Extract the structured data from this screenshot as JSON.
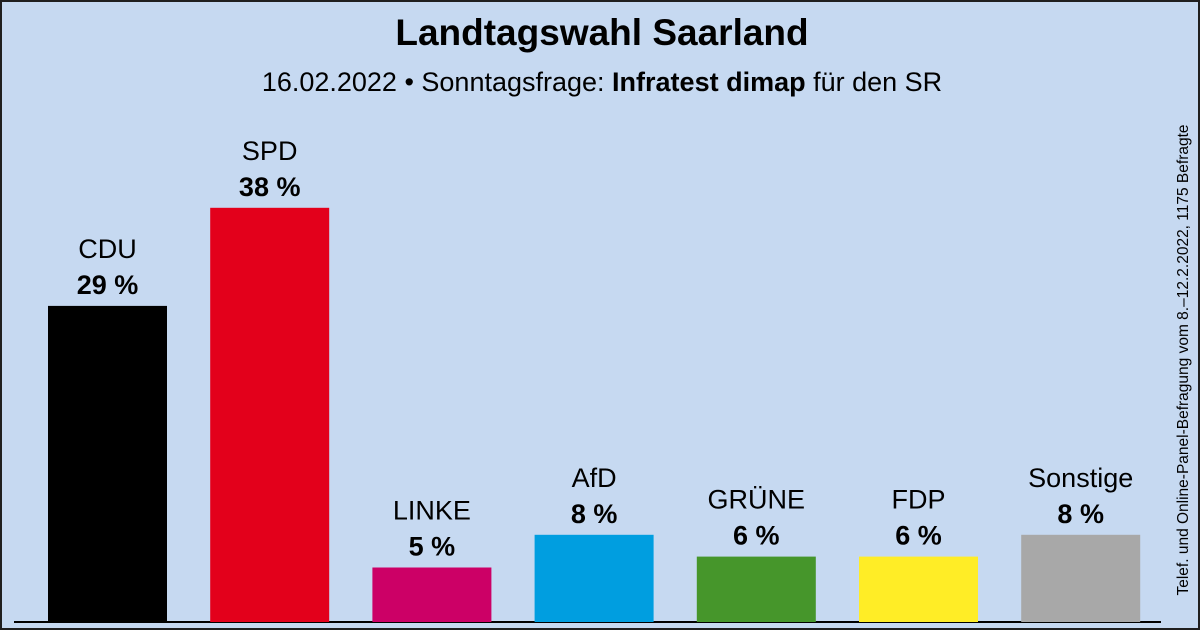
{
  "header": {
    "title": "Landtagswahl Saarland",
    "subtitle_prefix": "16.02.2022 • Sonntagsfrage: ",
    "subtitle_institute": "Infratest dimap",
    "subtitle_suffix": " für den SR"
  },
  "side_note": "Telef. und Online-Panel-Befragung vom 8.–12.2.2022, 1175 Befragte",
  "chart_data": {
    "type": "bar",
    "title": "Landtagswahl Saarland",
    "unit": "%",
    "categories": [
      "CDU",
      "SPD",
      "LINKE",
      "AfD",
      "GRÜNE",
      "FDP",
      "Sonstige"
    ],
    "values": [
      29,
      38,
      5,
      8,
      6,
      6,
      8
    ],
    "value_labels": [
      "29 %",
      "38 %",
      "5 %",
      "8 %",
      "6 %",
      "6 %",
      "8 %"
    ],
    "colors": [
      "#000000",
      "#e3001b",
      "#cc0066",
      "#009ee0",
      "#46962b",
      "#ffed26",
      "#a8a8a8"
    ],
    "grid": false,
    "legend": "none"
  }
}
